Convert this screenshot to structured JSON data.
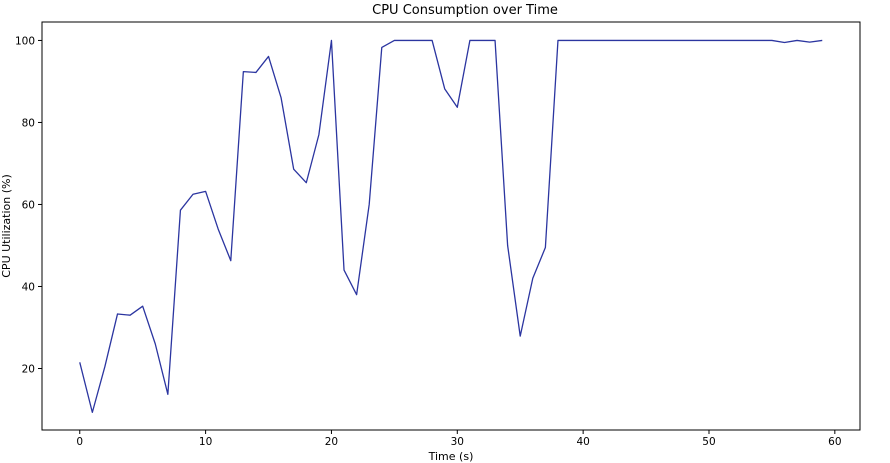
{
  "chart_data": {
    "type": "line",
    "title": "CPU Consumption over Time",
    "xlabel": "Time (s)",
    "ylabel": "CPU Utilization (%)",
    "xlim": [
      -3,
      62
    ],
    "ylim": [
      5,
      104.5
    ],
    "xticks": [
      0,
      10,
      20,
      30,
      40,
      50,
      60
    ],
    "yticks": [
      20,
      40,
      60,
      80,
      100
    ],
    "grid": false,
    "series": [
      {
        "color": "#2b35a0",
        "x": [
          0,
          1,
          2,
          3,
          4,
          5,
          6,
          7,
          8,
          9,
          10,
          11,
          12,
          13,
          14,
          15,
          16,
          17,
          18,
          19,
          20,
          21,
          22,
          23,
          24,
          25,
          26,
          27,
          28,
          29,
          30,
          31,
          32,
          33,
          34,
          35,
          36,
          37,
          38,
          39,
          40,
          41,
          42,
          43,
          44,
          45,
          46,
          47,
          48,
          49,
          50,
          51,
          52,
          53,
          54,
          55,
          56,
          57,
          58,
          59
        ],
        "y": [
          21.5,
          9.3,
          20.5,
          33.3,
          33,
          35.2,
          26,
          13.7,
          58.6,
          62.5,
          63.2,
          54,
          46.3,
          92.4,
          92.2,
          96.1,
          86,
          68.6,
          65.3,
          77,
          100,
          44,
          38,
          60,
          98.3,
          100,
          100,
          100,
          100,
          88.2,
          83.7,
          100,
          100,
          100,
          50,
          27.9,
          42,
          49.5,
          100,
          100,
          100,
          100,
          100,
          100,
          100,
          100,
          100,
          100,
          100,
          100,
          100,
          100,
          100,
          100,
          100,
          100,
          99.5,
          100,
          99.6,
          100
        ]
      }
    ]
  }
}
